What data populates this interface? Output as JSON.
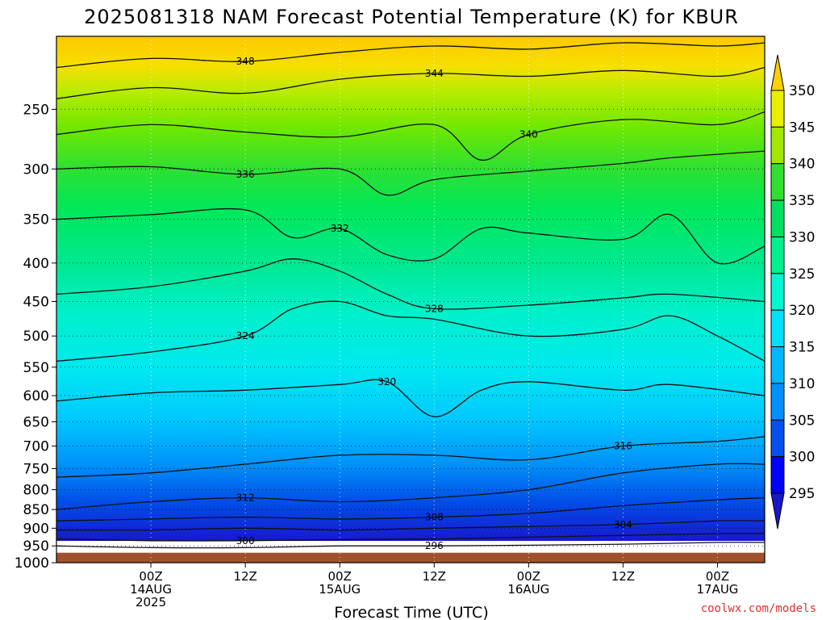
{
  "chart_data": {
    "type": "contour",
    "title": "2025081318 NAM Forecast Potential Temperature (K) for KBUR",
    "xlabel": "Forecast Time (UTC)",
    "credit": "coolwx.com/models",
    "y_axis": {
      "scale": "log",
      "ticks": [
        250,
        300,
        350,
        400,
        450,
        500,
        550,
        600,
        650,
        700,
        750,
        800,
        850,
        900,
        950,
        1000
      ],
      "range": [
        200,
        1000
      ],
      "inverted": true
    },
    "x_axis": {
      "unit": "hours",
      "range": [
        -6,
        84
      ],
      "ticks": [
        {
          "t": 6,
          "lines": [
            "00Z",
            "14AUG",
            "2025"
          ]
        },
        {
          "t": 18,
          "lines": [
            "12Z"
          ]
        },
        {
          "t": 30,
          "lines": [
            "00Z",
            "15AUG"
          ]
        },
        {
          "t": 42,
          "lines": [
            "12Z"
          ]
        },
        {
          "t": 54,
          "lines": [
            "00Z",
            "16AUG"
          ]
        },
        {
          "t": 66,
          "lines": [
            "12Z"
          ]
        },
        {
          "t": 78,
          "lines": [
            "00Z",
            "17AUG"
          ]
        }
      ]
    },
    "ground_below_hpa": 970,
    "ground_color": "#a0522d",
    "colorbar": {
      "labels": [
        "295",
        "300",
        "305",
        "310",
        "315",
        "320",
        "325",
        "330",
        "335",
        "340",
        "345",
        "350"
      ],
      "colors": [
        "#1818c8",
        "#0000ff",
        "#0050f0",
        "#0090ff",
        "#00b8ff",
        "#00e0ff",
        "#00f5d0",
        "#00f090",
        "#00e060",
        "#30e030",
        "#a0e800",
        "#e8f000",
        "#ffd000"
      ]
    },
    "isentropes": [
      {
        "theta": 348,
        "label": "348",
        "points": [
          [
            -6,
            220
          ],
          [
            6,
            214
          ],
          [
            18,
            216
          ],
          [
            30,
            210
          ],
          [
            42,
            206
          ],
          [
            54,
            208
          ],
          [
            66,
            204
          ],
          [
            78,
            206
          ],
          [
            84,
            204
          ]
        ]
      },
      {
        "theta": 344,
        "label": "344",
        "points": [
          [
            -6,
            242
          ],
          [
            6,
            234
          ],
          [
            18,
            238
          ],
          [
            30,
            228
          ],
          [
            42,
            224
          ],
          [
            54,
            226
          ],
          [
            66,
            222
          ],
          [
            78,
            226
          ],
          [
            84,
            220
          ]
        ]
      },
      {
        "theta": 340,
        "label": "340",
        "points": [
          [
            -6,
            270
          ],
          [
            6,
            262
          ],
          [
            18,
            268
          ],
          [
            30,
            272
          ],
          [
            42,
            262
          ],
          [
            48,
            292
          ],
          [
            54,
            270
          ],
          [
            66,
            258
          ],
          [
            78,
            262
          ],
          [
            84,
            252
          ]
        ]
      },
      {
        "theta": 336,
        "label": "336",
        "points": [
          [
            -6,
            300
          ],
          [
            6,
            298
          ],
          [
            18,
            305
          ],
          [
            30,
            300
          ],
          [
            36,
            325
          ],
          [
            42,
            310
          ],
          [
            54,
            302
          ],
          [
            66,
            295
          ],
          [
            72,
            290
          ],
          [
            84,
            284
          ]
        ]
      },
      {
        "theta": 332,
        "label": "332",
        "points": [
          [
            -6,
            350
          ],
          [
            6,
            345
          ],
          [
            18,
            340
          ],
          [
            24,
            370
          ],
          [
            30,
            360
          ],
          [
            36,
            390
          ],
          [
            42,
            395
          ],
          [
            48,
            360
          ],
          [
            54,
            365
          ],
          [
            66,
            372
          ],
          [
            72,
            345
          ],
          [
            78,
            400
          ],
          [
            84,
            380
          ]
        ]
      },
      {
        "theta": 328,
        "label": "328",
        "points": [
          [
            -6,
            440
          ],
          [
            6,
            430
          ],
          [
            18,
            410
          ],
          [
            24,
            395
          ],
          [
            30,
            410
          ],
          [
            36,
            440
          ],
          [
            42,
            460
          ],
          [
            54,
            455
          ],
          [
            66,
            445
          ],
          [
            72,
            440
          ],
          [
            84,
            450
          ]
        ]
      },
      {
        "theta": 324,
        "label": "324",
        "points": [
          [
            -6,
            540
          ],
          [
            6,
            525
          ],
          [
            18,
            500
          ],
          [
            24,
            460
          ],
          [
            30,
            450
          ],
          [
            36,
            470
          ],
          [
            42,
            475
          ],
          [
            54,
            500
          ],
          [
            66,
            490
          ],
          [
            72,
            470
          ],
          [
            78,
            500
          ],
          [
            84,
            540
          ]
        ]
      },
      {
        "theta": 320,
        "label": "320",
        "points": [
          [
            -6,
            610
          ],
          [
            6,
            595
          ],
          [
            18,
            590
          ],
          [
            30,
            580
          ],
          [
            36,
            575
          ],
          [
            42,
            640
          ],
          [
            48,
            590
          ],
          [
            54,
            575
          ],
          [
            66,
            590
          ],
          [
            72,
            580
          ],
          [
            84,
            600
          ]
        ]
      },
      {
        "theta": 316,
        "label": "316",
        "points": [
          [
            -6,
            770
          ],
          [
            6,
            760
          ],
          [
            18,
            740
          ],
          [
            30,
            720
          ],
          [
            42,
            720
          ],
          [
            54,
            730
          ],
          [
            66,
            700
          ],
          [
            78,
            690
          ],
          [
            84,
            680
          ]
        ]
      },
      {
        "theta": 312,
        "label": "312",
        "points": [
          [
            -6,
            850
          ],
          [
            6,
            830
          ],
          [
            18,
            820
          ],
          [
            30,
            830
          ],
          [
            42,
            820
          ],
          [
            54,
            800
          ],
          [
            66,
            760
          ],
          [
            78,
            740
          ],
          [
            84,
            740
          ]
        ]
      },
      {
        "theta": 308,
        "label": "308",
        "points": [
          [
            -6,
            880
          ],
          [
            6,
            875
          ],
          [
            18,
            870
          ],
          [
            30,
            875
          ],
          [
            42,
            870
          ],
          [
            54,
            860
          ],
          [
            66,
            840
          ],
          [
            78,
            825
          ],
          [
            84,
            820
          ]
        ]
      },
      {
        "theta": 304,
        "label": "304",
        "points": [
          [
            -6,
            905
          ],
          [
            6,
            905
          ],
          [
            18,
            900
          ],
          [
            30,
            905
          ],
          [
            42,
            900
          ],
          [
            54,
            895
          ],
          [
            66,
            890
          ],
          [
            78,
            880
          ],
          [
            84,
            880
          ]
        ]
      },
      {
        "theta": 300,
        "label": "300",
        "points": [
          [
            -6,
            930
          ],
          [
            6,
            935
          ],
          [
            18,
            935
          ],
          [
            30,
            932
          ],
          [
            42,
            930
          ],
          [
            54,
            925
          ],
          [
            66,
            920
          ],
          [
            78,
            915
          ],
          [
            84,
            915
          ]
        ]
      },
      {
        "theta": 296,
        "label": "296",
        "points": [
          [
            -6,
            950
          ],
          [
            6,
            955
          ],
          [
            18,
            955
          ],
          [
            30,
            950
          ],
          [
            42,
            950
          ],
          [
            54,
            948
          ],
          [
            66,
            945
          ],
          [
            78,
            940
          ],
          [
            84,
            940
          ]
        ]
      }
    ]
  }
}
